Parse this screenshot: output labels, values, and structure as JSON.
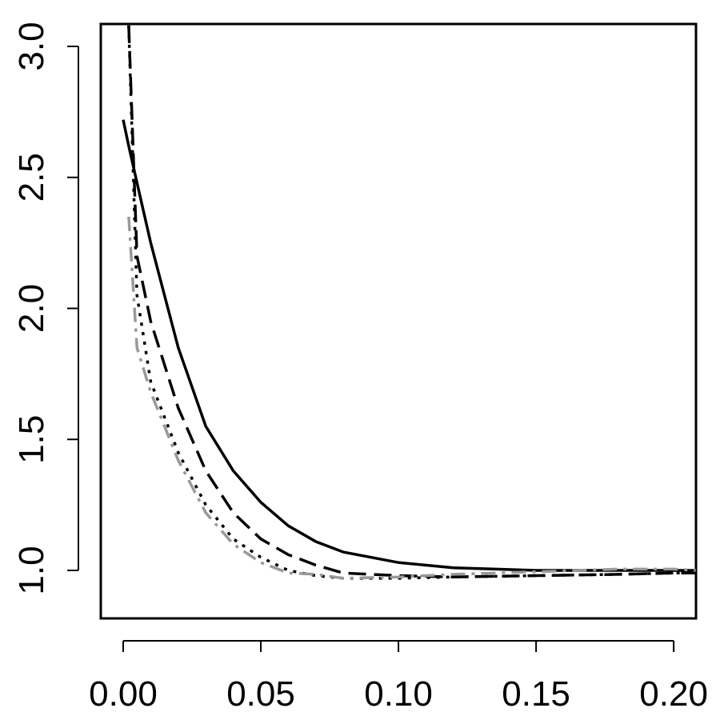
{
  "chart_data": {
    "type": "line",
    "x": [
      0,
      0.002,
      0.005,
      0.01,
      0.02,
      0.03,
      0.04,
      0.05,
      0.06,
      0.07,
      0.08,
      0.1,
      0.12,
      0.15,
      0.18,
      0.2,
      0.208
    ],
    "series": [
      {
        "color": "#000000",
        "linestyle": "solid",
        "values": [
          2.72,
          2.62,
          2.48,
          2.25,
          1.85,
          1.55,
          1.38,
          1.26,
          1.17,
          1.11,
          1.07,
          1.03,
          1.01,
          1.0,
          1.0,
          1.0,
          1.0
        ]
      },
      {
        "color": "#000000",
        "linestyle": "dashed",
        "values": [
          null,
          3.08,
          2.2,
          1.95,
          1.62,
          1.38,
          1.22,
          1.12,
          1.06,
          1.02,
          0.99,
          0.98,
          0.975,
          0.98,
          0.985,
          0.99,
          0.99
        ]
      },
      {
        "color": "#000000",
        "linestyle": "dotted",
        "values": [
          null,
          3.08,
          2.05,
          1.72,
          1.45,
          1.25,
          1.12,
          1.05,
          1.0,
          0.98,
          0.97,
          0.97,
          0.975,
          0.98,
          0.985,
          0.99,
          0.99
        ]
      },
      {
        "color": "#999999",
        "linestyle": "dashdot",
        "values": [
          null,
          2.35,
          1.85,
          1.68,
          1.42,
          1.22,
          1.1,
          1.03,
          0.99,
          0.985,
          0.97,
          0.975,
          0.985,
          0.995,
          1.005,
          1.005,
          1.0
        ]
      }
    ],
    "xlim": [
      -0.00814,
      0.2081
    ],
    "ylim": [
      0.8168,
      3.0855
    ],
    "xticks": [
      {
        "value": 0,
        "label": "0.00"
      },
      0.05,
      {
        "value": 0.1,
        "label": "0.10"
      },
      0.15,
      {
        "value": 0.2,
        "label": "0.20"
      }
    ],
    "yticks": [
      {
        "value": 1,
        "label": "1.0"
      },
      1.5,
      {
        "value": 2,
        "label": "2.0"
      },
      2.5,
      {
        "value": 3,
        "label": "3.0"
      }
    ]
  }
}
